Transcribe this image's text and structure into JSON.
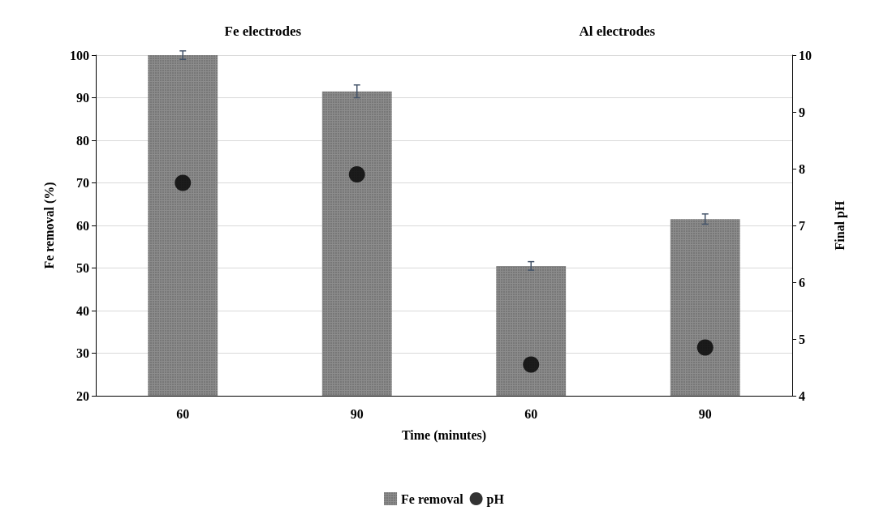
{
  "chart_data": {
    "type": "bar",
    "categories": [
      "60",
      "90",
      "60",
      "90"
    ],
    "xlabel": "Time (minutes)",
    "ylabel": "Fe removal (%)",
    "y2label": "Final pH",
    "annotations": [
      "Fe electrodes",
      "Al electrodes"
    ],
    "series": [
      {
        "name": "Fe removal",
        "color": "#8c8c8c",
        "values": [
          100,
          91.5,
          50.5,
          61.5
        ],
        "errors": [
          1,
          1.5,
          1,
          1.2
        ]
      },
      {
        "name": "pH",
        "type": "scatter",
        "axis": "y2",
        "color": "#000000",
        "marker": "circle",
        "values": [
          7.75,
          7.9,
          4.55,
          4.85
        ]
      }
    ],
    "ylim": [
      20,
      100
    ],
    "yticks": [
      20,
      30,
      40,
      50,
      60,
      70,
      80,
      90,
      100
    ],
    "y2lim": [
      4,
      10
    ],
    "y2ticks": [
      4,
      5,
      6,
      7,
      8,
      9,
      10
    ],
    "grid": "y",
    "legend": "bottom"
  }
}
